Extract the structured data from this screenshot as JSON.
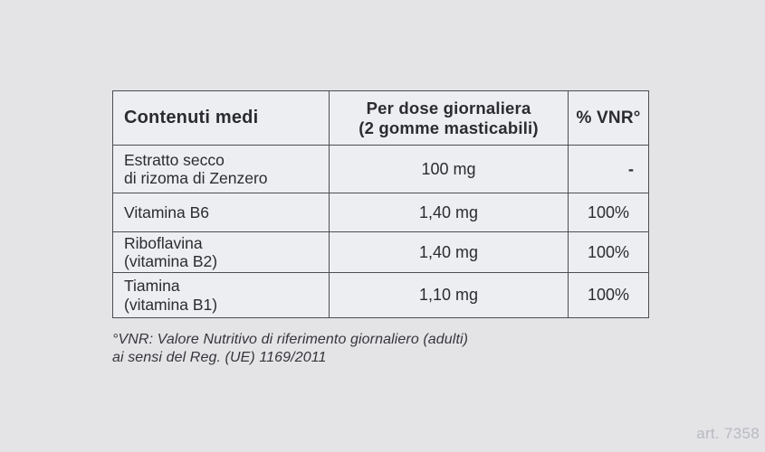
{
  "page": {
    "background_color": "#e4e4e7",
    "art_number": "art. 7358"
  },
  "table": {
    "border_color": "#4d4d55",
    "cell_background": "#edeef2",
    "header": {
      "contents_label": "Contenuti medi",
      "dose_line1": "Per dose giornaliera",
      "dose_line2": "(2 gomme masticabili)",
      "vnr_label": "% VNR°"
    },
    "rows": [
      {
        "name_line1": "Estratto secco",
        "name_line2": "di rizoma di Zenzero",
        "per_dose": "100 mg",
        "vnr": "-"
      },
      {
        "name_line1": "Vitamina B6",
        "name_line2": "",
        "per_dose": "1,40 mg",
        "vnr": "100%"
      },
      {
        "name_line1": "Riboflavina",
        "name_line2": "(vitamina B2)",
        "per_dose": "1,40 mg",
        "vnr": "100%"
      },
      {
        "name_line1": "Tiamina",
        "name_line2": "(vitamina B1)",
        "per_dose": "1,10 mg",
        "vnr": "100%"
      }
    ],
    "footnote_line1": "°VNR: Valore Nutritivo di riferimento giornaliero (adulti)",
    "footnote_line2": "ai sensi del Reg. (UE) 1169/2011"
  }
}
